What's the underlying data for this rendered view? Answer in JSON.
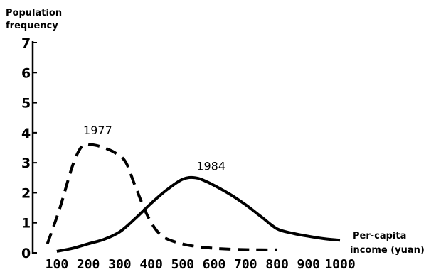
{
  "chart_data": {
    "type": "line",
    "title": "",
    "ylabel_lines": [
      "Population",
      "frequency"
    ],
    "xlabel_lines": [
      "Per-capita",
      "income (yuan)"
    ],
    "xlim": [
      55,
      1000
    ],
    "ylim": [
      0,
      7
    ],
    "xticks": [
      "100",
      "200",
      "300",
      "400",
      "500",
      "600",
      "700",
      "800",
      "900",
      "1000"
    ],
    "xtick_values": [
      100,
      200,
      300,
      400,
      500,
      600,
      700,
      800,
      900,
      1000
    ],
    "yticks": [
      "0",
      "1",
      "2",
      "3",
      "4",
      "5",
      "6",
      "7"
    ],
    "ytick_values": [
      0,
      1,
      2,
      3,
      4,
      5,
      6,
      7
    ],
    "grid": false,
    "series": [
      {
        "name": "1977",
        "style": "dashed",
        "x": [
          70,
          110,
          150,
          180,
          210,
          250,
          290,
          320,
          350,
          390,
          430,
          480,
          550,
          650,
          750,
          800
        ],
        "y": [
          0.3,
          1.5,
          2.9,
          3.55,
          3.6,
          3.5,
          3.3,
          3.0,
          2.2,
          1.2,
          0.6,
          0.35,
          0.2,
          0.12,
          0.1,
          0.1
        ]
      },
      {
        "name": "1984",
        "style": "solid",
        "x": [
          100,
          150,
          200,
          250,
          300,
          350,
          400,
          450,
          500,
          540,
          580,
          650,
          700,
          750,
          800,
          850,
          900,
          950,
          1000
        ],
        "y": [
          0.05,
          0.15,
          0.3,
          0.45,
          0.7,
          1.15,
          1.65,
          2.1,
          2.45,
          2.5,
          2.35,
          1.95,
          1.6,
          1.2,
          0.8,
          0.65,
          0.55,
          0.47,
          0.42
        ]
      }
    ],
    "annotations": [
      {
        "text": "1977",
        "x": 230,
        "y": 3.95
      },
      {
        "text": "1984",
        "x": 590,
        "y": 2.75
      }
    ]
  }
}
